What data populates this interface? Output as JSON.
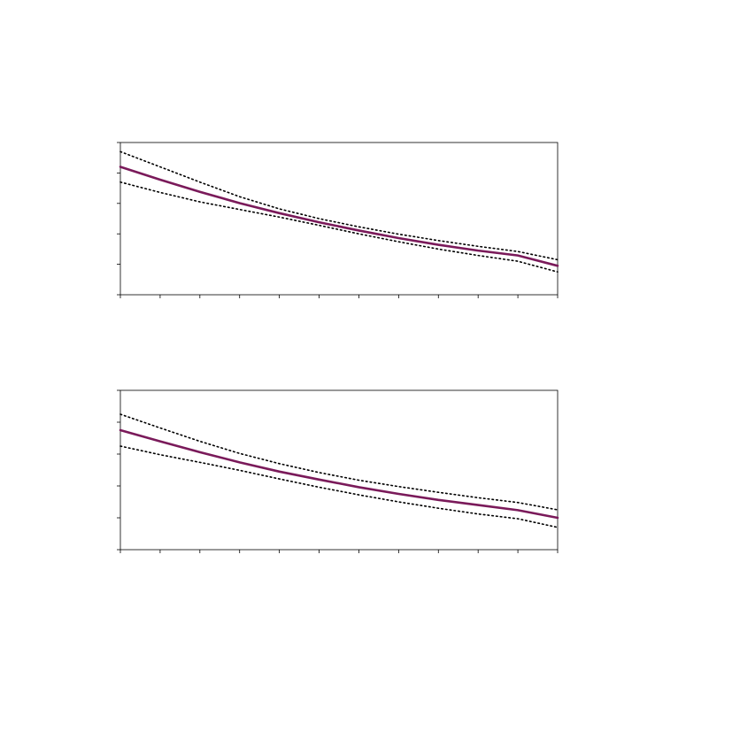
{
  "colors": {
    "mean": "#7a1a5a",
    "ci": "#000000",
    "frame": "#000000"
  },
  "chart_data": [
    {
      "type": "line",
      "title": "",
      "xlabel": "",
      "ylabel": "",
      "xlim": [
        0,
        11
      ],
      "ylim": [
        0,
        5
      ],
      "x_ticks": [
        0,
        1,
        2,
        3,
        4,
        5,
        6,
        7,
        8,
        9,
        10,
        11
      ],
      "y_ticks": [
        0,
        1,
        2,
        3,
        4,
        5
      ],
      "grid": false,
      "series": [
        {
          "role": "mean",
          "style": "solid",
          "x": [
            0,
            1,
            2,
            3,
            4,
            5,
            6,
            7,
            8,
            9,
            10,
            11
          ],
          "y": [
            4.2,
            3.78,
            3.38,
            3.01,
            2.68,
            2.38,
            2.11,
            1.86,
            1.64,
            1.45,
            1.29,
            0.95
          ]
        },
        {
          "role": "upper",
          "style": "dotted",
          "x": [
            0,
            1,
            2,
            3,
            4,
            5,
            6,
            7,
            8,
            9,
            10,
            11
          ],
          "y": [
            4.7,
            4.2,
            3.7,
            3.22,
            2.82,
            2.5,
            2.23,
            1.99,
            1.78,
            1.59,
            1.42,
            1.15
          ]
        },
        {
          "role": "lower",
          "style": "dotted",
          "x": [
            0,
            1,
            2,
            3,
            4,
            5,
            6,
            7,
            8,
            9,
            10,
            11
          ],
          "y": [
            3.7,
            3.36,
            3.05,
            2.8,
            2.55,
            2.28,
            2.0,
            1.74,
            1.5,
            1.29,
            1.1,
            0.75
          ]
        }
      ]
    },
    {
      "type": "line",
      "title": "",
      "xlabel": "",
      "ylabel": "",
      "xlim": [
        0,
        11
      ],
      "ylim": [
        0,
        5
      ],
      "x_ticks": [
        0,
        1,
        2,
        3,
        4,
        5,
        6,
        7,
        8,
        9,
        10,
        11
      ],
      "y_ticks": [
        0,
        1,
        2,
        3,
        4,
        5
      ],
      "grid": false,
      "series": [
        {
          "role": "mean",
          "style": "solid",
          "x": [
            0,
            1,
            2,
            3,
            4,
            5,
            6,
            7,
            8,
            9,
            10,
            11
          ],
          "y": [
            3.75,
            3.4,
            3.06,
            2.74,
            2.45,
            2.2,
            1.96,
            1.75,
            1.56,
            1.4,
            1.24,
            1.0
          ]
        },
        {
          "role": "upper",
          "style": "dotted",
          "x": [
            0,
            1,
            2,
            3,
            4,
            5,
            6,
            7,
            8,
            9,
            10,
            11
          ],
          "y": [
            4.25,
            3.82,
            3.4,
            3.02,
            2.7,
            2.42,
            2.18,
            1.98,
            1.8,
            1.63,
            1.48,
            1.25
          ]
        },
        {
          "role": "lower",
          "style": "dotted",
          "x": [
            0,
            1,
            2,
            3,
            4,
            5,
            6,
            7,
            8,
            9,
            10,
            11
          ],
          "y": [
            3.25,
            2.98,
            2.74,
            2.49,
            2.22,
            1.96,
            1.72,
            1.5,
            1.3,
            1.12,
            0.97,
            0.7
          ]
        }
      ]
    }
  ]
}
